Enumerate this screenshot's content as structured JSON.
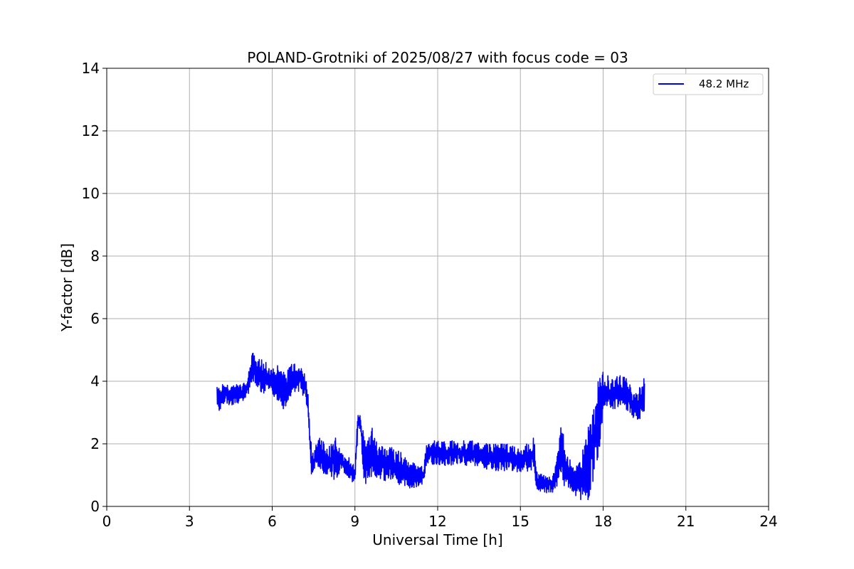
{
  "chart_data": {
    "type": "line",
    "title": "POLAND-Grotniki of 2025/08/27 with focus code = 03",
    "xlabel": "Universal Time [h]",
    "ylabel": "Y-factor [dB]",
    "xlim": [
      0,
      24
    ],
    "ylim": [
      0,
      14
    ],
    "xticks": [
      0,
      3,
      6,
      9,
      12,
      15,
      18,
      21,
      24
    ],
    "yticks": [
      0,
      2,
      4,
      6,
      8,
      10,
      12,
      14
    ],
    "grid": true,
    "legend_position": "top-right",
    "series": [
      {
        "name": "48.2 MHz",
        "color": "#0000ff",
        "x": [
          4.0,
          4.1,
          4.2,
          4.3,
          4.5,
          4.7,
          4.9,
          5.1,
          5.3,
          5.4,
          5.6,
          5.8,
          6.0,
          6.2,
          6.4,
          6.6,
          6.8,
          7.0,
          7.2,
          7.3,
          7.4,
          7.5,
          7.7,
          8.0,
          8.3,
          8.5,
          8.8,
          9.0,
          9.1,
          9.2,
          9.3,
          9.4,
          9.6,
          9.8,
          10.0,
          10.3,
          10.6,
          10.9,
          11.2,
          11.5,
          11.6,
          12.0,
          12.5,
          13.0,
          13.5,
          14.0,
          14.5,
          15.0,
          15.5,
          15.6,
          15.9,
          16.2,
          16.5,
          16.6,
          16.8,
          17.0,
          17.3,
          17.5,
          17.7,
          17.9,
          18.0,
          18.3,
          18.6,
          18.9,
          19.2,
          19.5
        ],
        "y_low": [
          3.3,
          3.0,
          3.2,
          3.3,
          3.2,
          3.3,
          3.3,
          3.5,
          3.9,
          3.8,
          3.6,
          3.5,
          3.6,
          3.3,
          3.0,
          3.4,
          3.6,
          3.7,
          3.4,
          2.9,
          0.9,
          0.9,
          1.2,
          0.9,
          0.8,
          1.1,
          0.8,
          0.7,
          2.2,
          2.6,
          0.9,
          0.7,
          0.9,
          0.9,
          0.8,
          0.7,
          0.7,
          0.5,
          0.6,
          0.7,
          1.4,
          1.3,
          1.3,
          1.3,
          1.3,
          1.1,
          1.1,
          1.1,
          1.1,
          0.5,
          0.4,
          0.4,
          0.9,
          0.5,
          0.4,
          0.3,
          0.1,
          0.1,
          1.0,
          1.6,
          3.1,
          3.1,
          3.1,
          3.0,
          2.6,
          3.0
        ],
        "y_high": [
          4.0,
          3.8,
          3.9,
          3.9,
          3.9,
          3.9,
          3.9,
          4.1,
          5.2,
          4.8,
          4.7,
          4.6,
          4.4,
          4.5,
          4.4,
          4.5,
          4.7,
          4.5,
          4.2,
          3.6,
          2.1,
          1.9,
          2.3,
          1.9,
          2.2,
          1.7,
          1.6,
          1.3,
          3.0,
          2.9,
          2.4,
          1.9,
          2.6,
          2.1,
          1.9,
          1.9,
          1.8,
          1.5,
          1.4,
          1.3,
          2.1,
          2.1,
          2.1,
          2.1,
          2.1,
          2.0,
          2.0,
          1.9,
          2.2,
          1.1,
          1.0,
          1.1,
          2.7,
          2.0,
          1.5,
          1.2,
          2.0,
          2.8,
          3.4,
          4.4,
          4.3,
          4.1,
          4.2,
          4.1,
          3.6,
          4.2
        ]
      }
    ]
  }
}
